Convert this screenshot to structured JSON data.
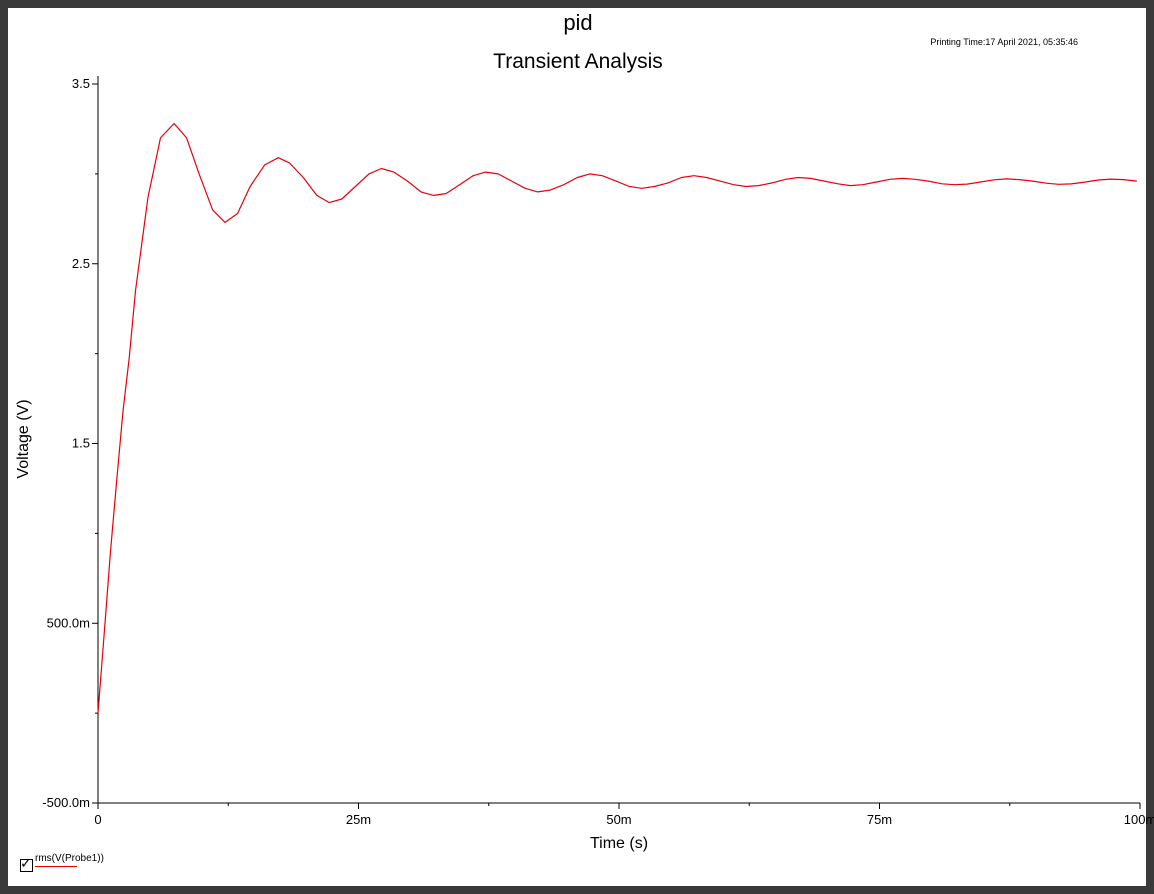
{
  "chart_data": {
    "type": "line",
    "title": "pid",
    "subtitle": "Transient Analysis",
    "printing_time": "Printing Time:17 April 2021, 05:35:46",
    "xlabel": "Time (s)",
    "ylabel": "Voltage (V)",
    "xlim": [
      0,
      0.1
    ],
    "ylim": [
      -0.5,
      3.5
    ],
    "x_ticks": [
      {
        "value": 0,
        "label": "0"
      },
      {
        "value": 0.025,
        "label": "25m"
      },
      {
        "value": 0.05,
        "label": "50m"
      },
      {
        "value": 0.075,
        "label": "75m"
      },
      {
        "value": 0.1,
        "label": "100m"
      }
    ],
    "y_ticks": [
      {
        "value": -0.5,
        "label": "-500.0m"
      },
      {
        "value": 0.5,
        "label": "500.0m"
      },
      {
        "value": 1.5,
        "label": "1.5"
      },
      {
        "value": 2.5,
        "label": "2.5"
      },
      {
        "value": 3.5,
        "label": "3.5"
      }
    ],
    "series": [
      {
        "name": "rms(V(Probe1))",
        "color": "#e8000b",
        "x": [
          0,
          0.0006,
          0.0012,
          0.0018,
          0.0024,
          0.003,
          0.0036,
          0.0048,
          0.006,
          0.0073,
          0.0085,
          0.0097,
          0.011,
          0.0122,
          0.0134,
          0.0146,
          0.016,
          0.0173,
          0.0184,
          0.0197,
          0.021,
          0.0222,
          0.0234,
          0.0247,
          0.026,
          0.0272,
          0.0284,
          0.0297,
          0.031,
          0.0322,
          0.0334,
          0.0347,
          0.036,
          0.0372,
          0.0384,
          0.0397,
          0.041,
          0.0422,
          0.0434,
          0.0447,
          0.046,
          0.0472,
          0.0484,
          0.0497,
          0.051,
          0.0522,
          0.0534,
          0.0547,
          0.056,
          0.0572,
          0.0584,
          0.0597,
          0.061,
          0.0622,
          0.0634,
          0.0647,
          0.066,
          0.0672,
          0.0684,
          0.0697,
          0.071,
          0.0722,
          0.0734,
          0.0747,
          0.076,
          0.0772,
          0.0784,
          0.0797,
          0.081,
          0.0822,
          0.0834,
          0.0847,
          0.086,
          0.0872,
          0.0884,
          0.0897,
          0.091,
          0.0922,
          0.0934,
          0.0947,
          0.096,
          0.0972,
          0.0984,
          0.0997
        ],
        "y": [
          0.0,
          0.45,
          0.9,
          1.3,
          1.68,
          1.98,
          2.35,
          2.87,
          3.2,
          3.28,
          3.2,
          3.0,
          2.8,
          2.73,
          2.78,
          2.93,
          3.05,
          3.09,
          3.06,
          2.98,
          2.88,
          2.84,
          2.86,
          2.93,
          3.0,
          3.03,
          3.01,
          2.96,
          2.9,
          2.88,
          2.89,
          2.94,
          2.99,
          3.01,
          3.0,
          2.96,
          2.92,
          2.9,
          2.91,
          2.94,
          2.98,
          3.0,
          2.99,
          2.96,
          2.93,
          2.92,
          2.93,
          2.95,
          2.98,
          2.99,
          2.98,
          2.96,
          2.94,
          2.93,
          2.935,
          2.95,
          2.97,
          2.98,
          2.975,
          2.96,
          2.945,
          2.935,
          2.94,
          2.955,
          2.97,
          2.975,
          2.97,
          2.96,
          2.945,
          2.94,
          2.943,
          2.955,
          2.967,
          2.972,
          2.968,
          2.96,
          2.948,
          2.942,
          2.944,
          2.954,
          2.966,
          2.971,
          2.968,
          2.96
        ]
      }
    ]
  }
}
